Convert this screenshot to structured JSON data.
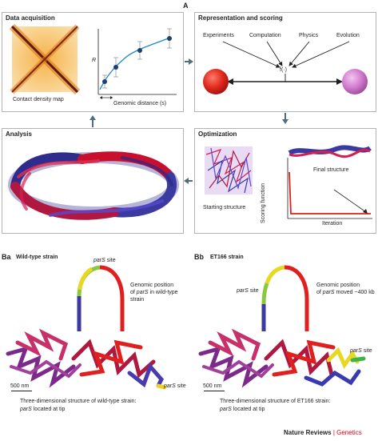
{
  "panel_a": {
    "letter": "A",
    "data_acquisition": {
      "title": "Data acquisition",
      "map_caption": "Contact density map",
      "plot_y_label": "R",
      "plot_x_label": "Genomic distance (s)"
    },
    "representation": {
      "title": "Representation and scoring",
      "sources": [
        "Experiments",
        "Computation",
        "Physics",
        "Evolution"
      ],
      "function_label": "f(·)"
    },
    "analysis": {
      "title": "Analysis"
    },
    "optimization": {
      "title": "Optimization",
      "start_label": "Starting structure",
      "final_label": "Final structure",
      "y_label": "Scoring function",
      "x_label": "Iteration"
    }
  },
  "panel_ba": {
    "letter": "Ba",
    "title": "Wild-type strain",
    "pars_top": "parS",
    "pars_top_suffix": " site",
    "genomic_line1": "Genomic position",
    "genomic_line2_pre": "of ",
    "genomic_line2_it": "parS",
    "genomic_line2_post": " in wild-type",
    "genomic_line3": "strain",
    "pars_tip": "parS",
    "pars_tip_suffix": " site",
    "scale": "500 nm",
    "caption_line1": "Three-dimensional structure of wild-type strain:",
    "caption_line2_it": "parS",
    "caption_line2_post": " located at tip"
  },
  "panel_bb": {
    "letter": "Bb",
    "title": "ET166 strain",
    "pars_left": "parS",
    "pars_left_suffix": " site",
    "genomic_line1": "Genomic position",
    "genomic_line2_pre": "of ",
    "genomic_line2_it": "parS",
    "genomic_line2_post": " moved ~400 kb",
    "pars_right": "parS",
    "pars_right_suffix": " site",
    "scale": "500 nm",
    "caption_line1": "Three-dimensional structure of ET166 strain:",
    "caption_line2_it": "parS",
    "caption_line2_post": " located at tip"
  },
  "footer": {
    "journal": "Nature Reviews",
    "separator": " | ",
    "section": "Genetics"
  },
  "colors": {
    "footer_accent": "#e2001a",
    "panel_border": "#b3b3b3",
    "arrow": "#4f6f7f"
  }
}
